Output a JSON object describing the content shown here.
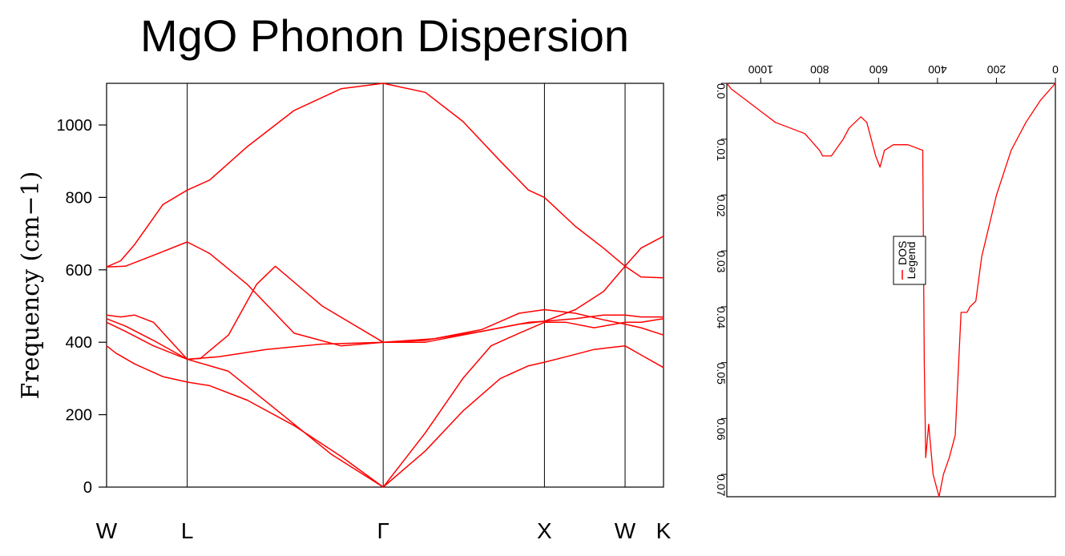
{
  "chart_data": [
    {
      "type": "line",
      "title": "MgO Phonon Dispersion",
      "ylabel": "Frequency (cm−1)",
      "ylim": [
        0,
        1115
      ],
      "yticks": [
        0,
        200,
        400,
        600,
        800,
        1000
      ],
      "high_symmetry_points": [
        {
          "label": "W",
          "x": 0.0
        },
        {
          "label": "L",
          "x": 0.86
        },
        {
          "label": "Γ",
          "x": 2.95
        },
        {
          "label": "X",
          "x": 4.67
        },
        {
          "label": "W",
          "x": 5.53
        },
        {
          "label": "K",
          "x": 5.94
        }
      ],
      "color": "#ff0000",
      "series": [
        {
          "x": [
            0,
            0.1,
            0.3,
            0.6,
            0.86,
            1.1,
            1.5,
            2.0,
            2.5,
            2.95,
            3.4,
            3.8,
            4.2,
            4.5,
            4.67,
            4.9,
            5.2,
            5.53,
            5.7,
            5.94
          ],
          "values": [
            390,
            370,
            340,
            305,
            290,
            280,
            240,
            170,
            85,
            0,
            100,
            210,
            300,
            335,
            345,
            360,
            380,
            390,
            365,
            330
          ]
        },
        {
          "x": [
            0,
            0.2,
            0.5,
            0.86,
            1.3,
            1.9,
            2.4,
            2.95,
            3.4,
            3.8,
            4.1,
            4.4,
            4.67,
            4.9,
            5.2,
            5.53,
            5.7,
            5.94
          ],
          "values": [
            455,
            430,
            390,
            353,
            320,
            195,
            90,
            0,
            150,
            300,
            390,
            425,
            455,
            455,
            440,
            455,
            455,
            465
          ]
        },
        {
          "x": [
            0,
            0.2,
            0.5,
            0.86,
            1.2,
            1.7,
            2.3,
            2.95,
            3.5,
            4.0,
            4.4,
            4.67,
            5.0,
            5.3,
            5.53,
            5.7,
            5.94
          ],
          "values": [
            465,
            445,
            405,
            353,
            360,
            380,
            395,
            400,
            410,
            430,
            450,
            458,
            465,
            475,
            475,
            470,
            470
          ]
        },
        {
          "x": [
            0,
            0.15,
            0.3,
            0.5,
            0.86,
            1.0,
            1.3,
            1.6,
            1.8,
            2.3,
            2.95,
            3.4,
            4.0,
            4.4,
            4.67,
            5.0,
            5.3,
            5.53,
            5.7,
            5.94
          ],
          "values": [
            475,
            470,
            475,
            455,
            353,
            355,
            420,
            560,
            610,
            500,
            400,
            405,
            435,
            480,
            490,
            480,
            462,
            450,
            440,
            420
          ]
        },
        {
          "x": [
            0,
            0.2,
            0.5,
            0.86,
            1.1,
            1.5,
            2.0,
            2.5,
            2.95,
            3.4,
            3.8,
            4.2,
            4.5,
            4.67,
            5.0,
            5.3,
            5.53,
            5.7,
            5.94
          ],
          "values": [
            608,
            610,
            640,
            677,
            645,
            560,
            425,
            390,
            400,
            400,
            420,
            440,
            455,
            458,
            490,
            540,
            610,
            580,
            578
          ]
        },
        {
          "x": [
            0,
            0.15,
            0.3,
            0.6,
            0.86,
            1.1,
            1.5,
            2.0,
            2.5,
            2.95,
            3.4,
            3.8,
            4.2,
            4.5,
            4.67,
            5.0,
            5.3,
            5.53,
            5.7,
            5.94
          ],
          "values": [
            608,
            625,
            670,
            780,
            820,
            848,
            940,
            1040,
            1100,
            1115,
            1090,
            1010,
            900,
            820,
            800,
            720,
            660,
            610,
            660,
            693
          ]
        }
      ]
    },
    {
      "type": "line",
      "orientation": "rotated-180",
      "legend": {
        "title": "Legend",
        "entries": [
          "DOS"
        ]
      },
      "freq_ticks": [
        0,
        200,
        400,
        600,
        800,
        1000
      ],
      "dos_ticks": [
        "0.0",
        "0.01",
        "0.02",
        "0.03",
        "0.04",
        "0.05",
        "0.06",
        "0.07"
      ],
      "freq_range": [
        0,
        1115
      ],
      "dos_range": [
        0,
        0.074
      ],
      "color": "#ff0000",
      "freq": [
        0,
        50,
        100,
        150,
        200,
        250,
        270,
        290,
        300,
        320,
        340,
        360,
        380,
        395,
        415,
        430,
        440,
        445,
        450,
        500,
        550,
        580,
        595,
        610,
        640,
        660,
        700,
        720,
        760,
        790,
        800,
        850,
        900,
        950,
        1000,
        1050,
        1100,
        1115
      ],
      "dos": [
        0.0,
        0.003,
        0.007,
        0.012,
        0.02,
        0.031,
        0.039,
        0.04,
        0.041,
        0.041,
        0.063,
        0.067,
        0.07,
        0.074,
        0.07,
        0.061,
        0.067,
        0.05,
        0.012,
        0.011,
        0.011,
        0.012,
        0.015,
        0.013,
        0.007,
        0.006,
        0.008,
        0.01,
        0.013,
        0.013,
        0.012,
        0.009,
        0.008,
        0.007,
        0.005,
        0.003,
        0.001,
        0.0
      ]
    }
  ]
}
